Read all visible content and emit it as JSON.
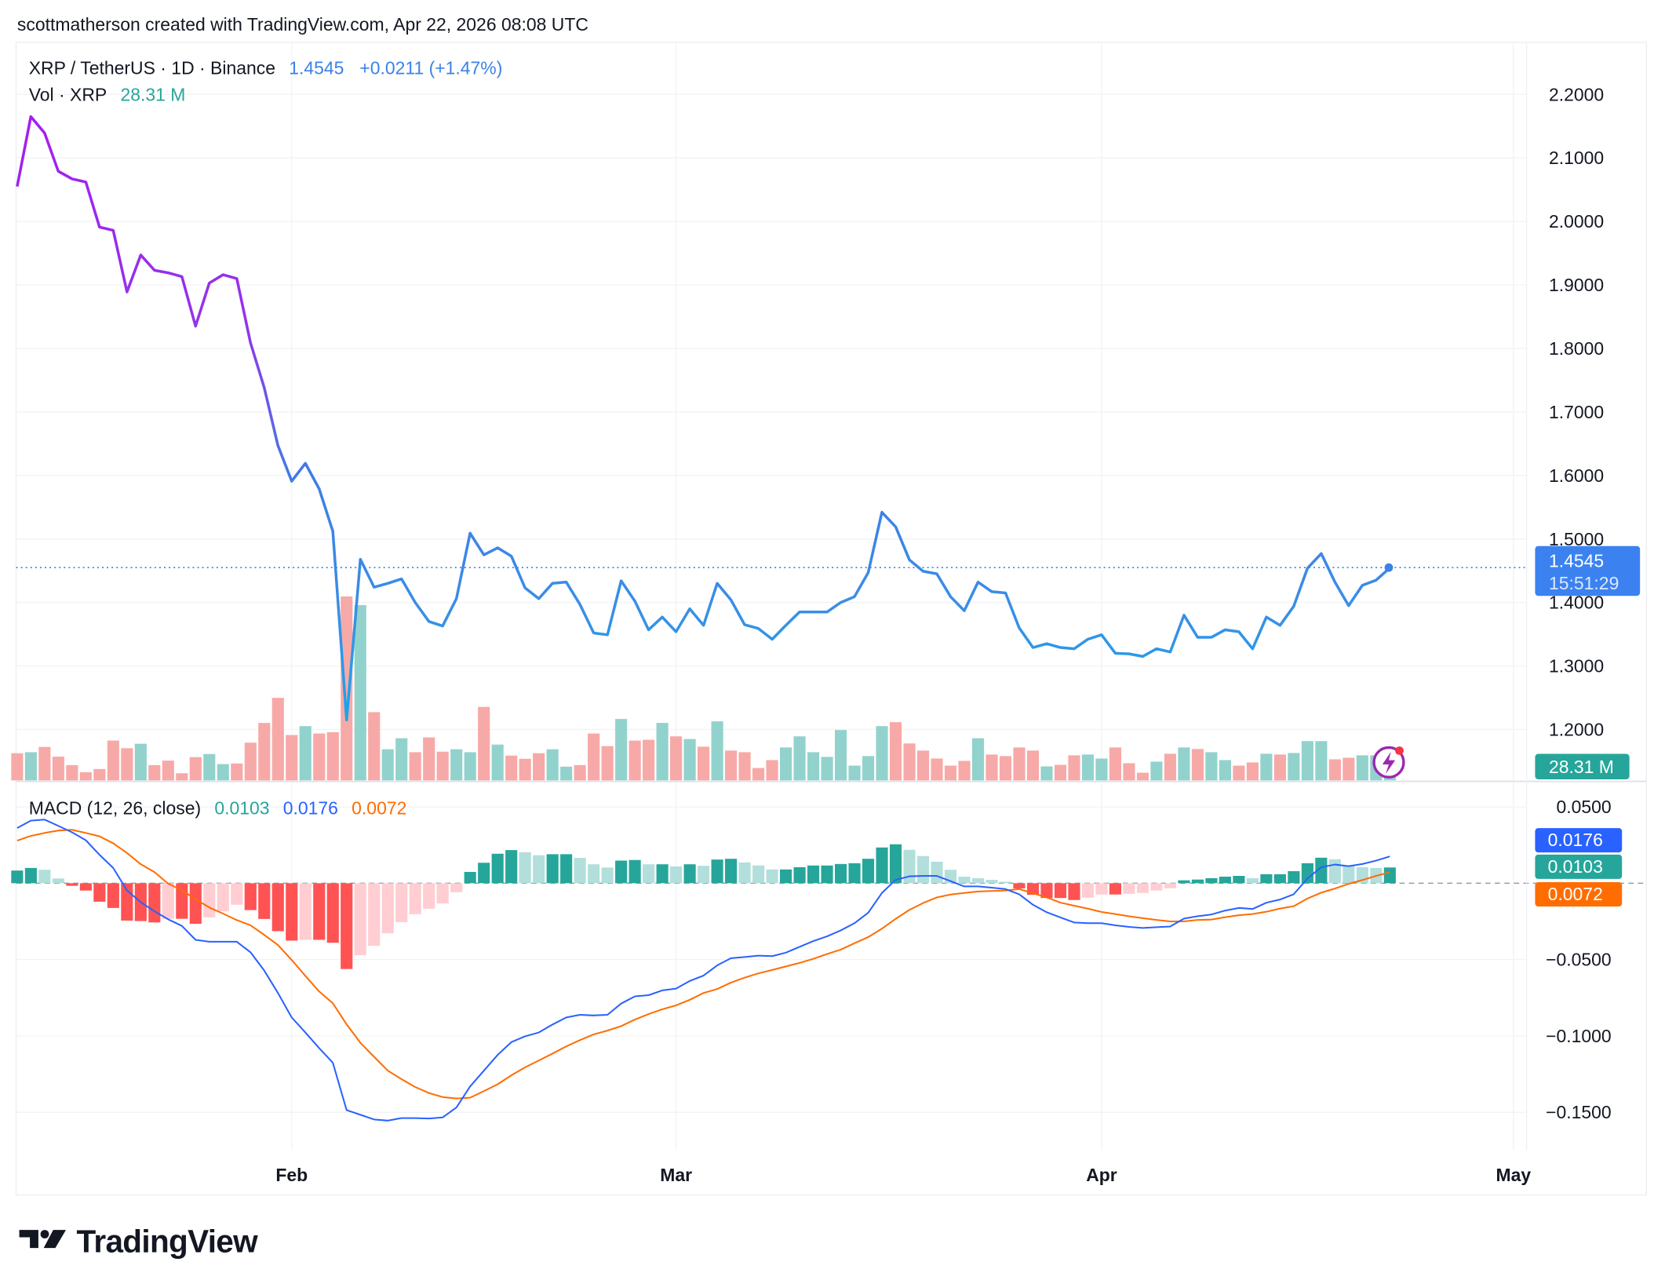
{
  "attribution": "scottmatherson created with TradingView.com, Apr 22, 2026 08:08 UTC",
  "legend": {
    "symbol": "XRP / TetherUS · 1D · Binance",
    "last": "1.4545",
    "change": "+0.0211 (+1.47%)",
    "vol_label": "Vol · XRP",
    "vol_value": "28.31 M",
    "macd_label": "MACD (12, 26, close)",
    "macd_hist": "0.0103",
    "macd_line": "0.0176",
    "macd_signal": "0.0072"
  },
  "price_badge": {
    "price": "1.4545",
    "countdown": "15:51:29"
  },
  "volume_badge": "28.31 M",
  "macd_badges": {
    "macd": "0.0176",
    "hist": "0.0103",
    "signal": "0.0072"
  },
  "logo": "TradingView",
  "colors": {
    "price_line_top": "#a020f0",
    "price_line_bottom": "#3a8ee6",
    "price_badge": "#3b82f0",
    "volume_up": "#92d2cc",
    "volume_down": "#f7a9a7",
    "volume_badge": "#26a69a",
    "macd_line": "#2962ff",
    "signal_line": "#ff6d00",
    "hist_up_strong": "#26a69a",
    "hist_up_weak": "#b2dfdb",
    "hist_down_strong": "#ff5252",
    "hist_down_weak": "#ffcdd2",
    "alert_icon": "#9c27b0"
  },
  "chart_data": [
    {
      "type": "line",
      "title": "XRP / TetherUS · 1D · Binance",
      "ylim": [
        1.15,
        2.25
      ],
      "y_ticks": [
        "2.2000",
        "2.1000",
        "2.0000",
        "1.9000",
        "1.8000",
        "1.7000",
        "1.6000",
        "1.5000",
        "1.4000",
        "1.3000",
        "1.2000"
      ],
      "x_ticks": [
        "Feb",
        "Mar",
        "Apr",
        "May"
      ],
      "grid": true,
      "dates": [
        "2026-01-12",
        "2026-01-13",
        "2026-01-14",
        "2026-01-15",
        "2026-01-16",
        "2026-01-17",
        "2026-01-18",
        "2026-01-19",
        "2026-01-20",
        "2026-01-21",
        "2026-01-22",
        "2026-01-23",
        "2026-01-24",
        "2026-01-25",
        "2026-01-26",
        "2026-01-27",
        "2026-01-28",
        "2026-01-29",
        "2026-01-30",
        "2026-01-31",
        "2026-02-01",
        "2026-02-02",
        "2026-02-03",
        "2026-02-04",
        "2026-02-05",
        "2026-02-06",
        "2026-02-07",
        "2026-02-08",
        "2026-02-09",
        "2026-02-10",
        "2026-02-11",
        "2026-02-12",
        "2026-02-13",
        "2026-02-14",
        "2026-02-15",
        "2026-02-16",
        "2026-02-17",
        "2026-02-18",
        "2026-02-19",
        "2026-02-20",
        "2026-02-21",
        "2026-02-22",
        "2026-02-23",
        "2026-02-24",
        "2026-02-25",
        "2026-02-26",
        "2026-02-27",
        "2026-02-28",
        "2026-03-01",
        "2026-03-02",
        "2026-03-03",
        "2026-03-04",
        "2026-03-05",
        "2026-03-06",
        "2026-03-07",
        "2026-03-08",
        "2026-03-09",
        "2026-03-10",
        "2026-03-11",
        "2026-03-12",
        "2026-03-13",
        "2026-03-14",
        "2026-03-15",
        "2026-03-16",
        "2026-03-17",
        "2026-03-18",
        "2026-03-19",
        "2026-03-20",
        "2026-03-21",
        "2026-03-22",
        "2026-03-23",
        "2026-03-24",
        "2026-03-25",
        "2026-03-26",
        "2026-03-27",
        "2026-03-28",
        "2026-03-29",
        "2026-03-30",
        "2026-03-31",
        "2026-04-01",
        "2026-04-02",
        "2026-04-03",
        "2026-04-04",
        "2026-04-05",
        "2026-04-06",
        "2026-04-07",
        "2026-04-08",
        "2026-04-09",
        "2026-04-10",
        "2026-04-11",
        "2026-04-12",
        "2026-04-13",
        "2026-04-14",
        "2026-04-15",
        "2026-04-16",
        "2026-04-17",
        "2026-04-18",
        "2026-04-19",
        "2026-04-20",
        "2026-04-21",
        "2026-04-22"
      ],
      "close": [
        2.055,
        2.165,
        2.139,
        2.079,
        2.067,
        2.062,
        1.991,
        1.986,
        1.889,
        1.947,
        1.923,
        1.919,
        1.913,
        1.835,
        1.903,
        1.916,
        1.91,
        1.809,
        1.738,
        1.647,
        1.591,
        1.619,
        1.579,
        1.512,
        1.215,
        1.468,
        1.424,
        1.43,
        1.437,
        1.4,
        1.37,
        1.363,
        1.406,
        1.509,
        1.475,
        1.486,
        1.473,
        1.423,
        1.406,
        1.43,
        1.432,
        1.397,
        1.352,
        1.349,
        1.434,
        1.402,
        1.357,
        1.377,
        1.354,
        1.39,
        1.364,
        1.43,
        1.404,
        1.365,
        1.359,
        1.342,
        1.364,
        1.385,
        1.385,
        1.385,
        1.4,
        1.409,
        1.447,
        1.542,
        1.519,
        1.467,
        1.449,
        1.445,
        1.409,
        1.387,
        1.432,
        1.417,
        1.415,
        1.36,
        1.329,
        1.335,
        1.329,
        1.327,
        1.342,
        1.349,
        1.32,
        1.319,
        1.315,
        1.327,
        1.322,
        1.38,
        1.345,
        1.345,
        1.357,
        1.354,
        1.327,
        1.377,
        1.364,
        1.394,
        1.454,
        1.477,
        1.432,
        1.395,
        1.427,
        1.435,
        1.4545
      ],
      "volume_M": [
        41.6,
        43.2,
        51.3,
        36.4,
        23.4,
        12.5,
        17.4,
        61.0,
        49.3,
        56.2,
        23.4,
        30.3,
        10.9,
        35.6,
        40.4,
        25.0,
        25.9,
        57.8,
        88.1,
        126.5,
        69.5,
        83.2,
        71.9,
        73.9,
        282.0,
        268.7,
        104.6,
        47.7,
        64.6,
        43.2,
        65.9,
        44.0,
        47.7,
        43.2,
        112.7,
        54.9,
        38.0,
        33.1,
        41.6,
        47.7,
        21.0,
        23.4,
        71.9,
        52.5,
        94.1,
        61.0,
        62.2,
        88.1,
        67.5,
        63.4,
        51.7,
        90.5,
        45.7,
        43.2,
        19.0,
        31.1,
        50.5,
        67.5,
        43.2,
        36.0,
        77.2,
        22.6,
        37.2,
        83.2,
        89.3,
        56.6,
        45.7,
        33.5,
        22.6,
        29.9,
        64.6,
        39.6,
        37.2,
        50.5,
        45.7,
        21.4,
        23.8,
        38.4,
        39.6,
        33.5,
        50.5,
        26.3,
        11.7,
        28.7,
        40.8,
        50.5,
        48.1,
        43.2,
        31.1,
        22.6,
        27.5,
        40.8,
        39.6,
        42.0,
        60.2,
        60.2,
        32.3,
        34.7,
        38.4,
        38.4,
        28.31
      ]
    },
    {
      "type": "line",
      "title": "MACD (12, 26, close)",
      "ylim": [
        -0.17,
        0.065
      ],
      "y_ticks": [
        "0.0500",
        "−0.0500",
        "−0.1000",
        "−0.1500"
      ],
      "grid": true,
      "macd": [
        0.0362,
        0.041,
        0.0417,
        0.0376,
        0.0333,
        0.0281,
        0.0186,
        0.01,
        -0.0047,
        -0.0124,
        -0.0184,
        -0.0236,
        -0.0279,
        -0.0371,
        -0.0383,
        -0.0383,
        -0.0383,
        -0.0452,
        -0.0572,
        -0.0719,
        -0.0879,
        -0.0978,
        -0.108,
        -0.1176,
        -0.1486,
        -0.1517,
        -0.1547,
        -0.1555,
        -0.1538,
        -0.1538,
        -0.1541,
        -0.1534,
        -0.1469,
        -0.1331,
        -0.1228,
        -0.1124,
        -0.1041,
        -0.1003,
        -0.0978,
        -0.0926,
        -0.0879,
        -0.0862,
        -0.0866,
        -0.0862,
        -0.0788,
        -0.0741,
        -0.0733,
        -0.0702,
        -0.069,
        -0.064,
        -0.0605,
        -0.0538,
        -0.0491,
        -0.0483,
        -0.0474,
        -0.0478,
        -0.0455,
        -0.0417,
        -0.0379,
        -0.0348,
        -0.0309,
        -0.0262,
        -0.0193,
        -0.0064,
        0.0022,
        0.0045,
        0.0048,
        0.0048,
        0.0014,
        -0.0021,
        -0.0021,
        -0.0029,
        -0.0038,
        -0.0072,
        -0.0141,
        -0.019,
        -0.0224,
        -0.0257,
        -0.0262,
        -0.0262,
        -0.0276,
        -0.0286,
        -0.0293,
        -0.0288,
        -0.0283,
        -0.0231,
        -0.0216,
        -0.0205,
        -0.0179,
        -0.0162,
        -0.0169,
        -0.0128,
        -0.0107,
        -0.0072,
        0.0031,
        0.0105,
        0.0122,
        0.0112,
        0.0126,
        0.0148,
        0.0176
      ],
      "signal": [
        0.0279,
        0.031,
        0.0329,
        0.0345,
        0.035,
        0.0329,
        0.0307,
        0.0262,
        0.0198,
        0.0124,
        0.0073,
        -0.0003,
        -0.0046,
        -0.0105,
        -0.0159,
        -0.0199,
        -0.0242,
        -0.0276,
        -0.0338,
        -0.0405,
        -0.0503,
        -0.0607,
        -0.0709,
        -0.0786,
        -0.0924,
        -0.1045,
        -0.1137,
        -0.1227,
        -0.1283,
        -0.1335,
        -0.1374,
        -0.1401,
        -0.141,
        -0.1405,
        -0.1362,
        -0.1317,
        -0.1258,
        -0.1206,
        -0.1161,
        -0.1116,
        -0.1069,
        -0.1028,
        -0.099,
        -0.0965,
        -0.0936,
        -0.0893,
        -0.0857,
        -0.0826,
        -0.08,
        -0.0764,
        -0.0719,
        -0.0693,
        -0.0651,
        -0.0619,
        -0.059,
        -0.0568,
        -0.0545,
        -0.0522,
        -0.0495,
        -0.0464,
        -0.0435,
        -0.0393,
        -0.0353,
        -0.0298,
        -0.0233,
        -0.0174,
        -0.013,
        -0.0093,
        -0.0074,
        -0.0064,
        -0.0054,
        -0.0051,
        -0.0048,
        -0.0038,
        -0.0065,
        -0.0093,
        -0.0127,
        -0.0147,
        -0.0167,
        -0.0188,
        -0.0202,
        -0.0217,
        -0.0229,
        -0.024,
        -0.025,
        -0.025,
        -0.024,
        -0.0238,
        -0.0222,
        -0.021,
        -0.0202,
        -0.0187,
        -0.0166,
        -0.0151,
        -0.01,
        -0.0062,
        -0.0035,
        -0.0004,
        0.0021,
        0.0048,
        0.0072
      ],
      "histogram": [
        0.0083,
        0.01,
        0.0088,
        0.0031,
        -0.0017,
        -0.0048,
        -0.0121,
        -0.0162,
        -0.0245,
        -0.0248,
        -0.0257,
        -0.0233,
        -0.0233,
        -0.0266,
        -0.0224,
        -0.0184,
        -0.0141,
        -0.0176,
        -0.0234,
        -0.0314,
        -0.0376,
        -0.0371,
        -0.0371,
        -0.039,
        -0.0562,
        -0.0472,
        -0.041,
        -0.0328,
        -0.0255,
        -0.0203,
        -0.0167,
        -0.0133,
        -0.0059,
        0.0074,
        0.0134,
        0.0193,
        0.0217,
        0.0203,
        0.0183,
        0.019,
        0.019,
        0.0166,
        0.0124,
        0.0103,
        0.0148,
        0.0152,
        0.0124,
        0.0124,
        0.011,
        0.0124,
        0.0114,
        0.0155,
        0.016,
        0.0136,
        0.0116,
        0.009,
        0.009,
        0.0105,
        0.0116,
        0.0116,
        0.0126,
        0.0131,
        0.016,
        0.0234,
        0.0255,
        0.0219,
        0.0178,
        0.0141,
        0.0088,
        0.0043,
        0.0033,
        0.0022,
        0.001,
        -0.0034,
        -0.0076,
        -0.0097,
        -0.0097,
        -0.011,
        -0.0095,
        -0.0074,
        -0.0074,
        -0.0069,
        -0.0064,
        -0.0048,
        -0.0033,
        0.0019,
        0.0024,
        0.0033,
        0.0043,
        0.0048,
        0.0033,
        0.0059,
        0.0059,
        0.0079,
        0.0131,
        0.0167,
        0.0157,
        0.0116,
        0.0105,
        0.01,
        0.0103
      ]
    }
  ]
}
